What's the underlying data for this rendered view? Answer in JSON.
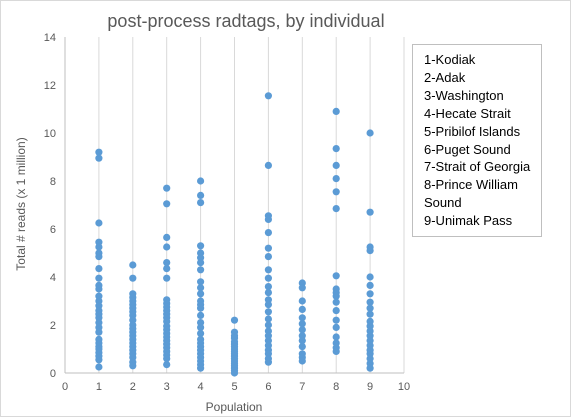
{
  "chart_data": {
    "type": "scatter",
    "title": "post-process radtags, by individual",
    "xlabel": "Population",
    "ylabel": "Total # reads (x 1 million)",
    "xlim": [
      0,
      10
    ],
    "ylim": [
      0,
      14
    ],
    "x_ticks": [
      "0",
      "1",
      "2",
      "3",
      "4",
      "5",
      "6",
      "7",
      "8",
      "9",
      "10"
    ],
    "y_ticks": [
      "0",
      "2",
      "4",
      "6",
      "8",
      "10",
      "12",
      "14"
    ],
    "grid": "vertical",
    "legend_position": "right",
    "marker_color": "#5b9bd5",
    "legend": [
      "1-Kodiak",
      "2-Adak",
      "3-Washington",
      "4-Hecate Strait",
      "5-Pribilof Islands",
      "6-Puget Sound",
      "7-Strait of Georgia",
      "8-Prince William Sound",
      "9-Unimak Pass"
    ],
    "points": [
      {
        "x": 1,
        "ys": [
          9.2,
          8.95,
          6.25,
          5.45,
          5.25,
          5.0,
          4.85,
          4.35,
          3.95,
          3.65,
          3.5,
          3.2,
          3.0,
          2.8,
          2.6,
          2.45,
          2.3,
          2.1,
          1.9,
          1.7,
          1.4,
          1.25,
          1.1,
          1.0,
          0.85,
          0.7,
          0.55,
          0.25
        ]
      },
      {
        "x": 2,
        "ys": [
          4.5,
          3.95,
          3.3,
          3.15,
          3.0,
          2.85,
          2.7,
          2.55,
          2.4,
          2.2,
          2.0,
          1.85,
          1.7,
          1.55,
          1.4,
          1.25,
          1.1,
          0.95,
          0.8,
          0.65,
          0.45,
          0.3
        ]
      },
      {
        "x": 3,
        "ys": [
          7.7,
          7.05,
          5.65,
          5.25,
          4.6,
          4.35,
          3.95,
          3.05,
          2.9,
          2.75,
          2.6,
          2.45,
          2.3,
          2.15,
          1.95,
          1.8,
          1.65,
          1.5,
          1.35,
          1.2,
          1.05,
          0.9,
          0.75,
          0.6,
          0.35
        ]
      },
      {
        "x": 4,
        "ys": [
          8.0,
          7.4,
          7.1,
          5.3,
          5.0,
          4.8,
          4.6,
          4.3,
          3.8,
          3.55,
          3.3,
          3.0,
          2.85,
          2.7,
          2.4,
          2.1,
          1.9,
          1.65,
          1.4,
          1.25,
          1.1,
          0.95,
          0.8,
          0.65,
          0.5,
          0.35,
          0.2
        ]
      },
      {
        "x": 5,
        "ys": [
          2.2,
          1.7,
          1.55,
          1.45,
          1.3,
          1.2,
          1.1,
          1.0,
          0.9,
          0.8,
          0.7,
          0.6,
          0.5,
          0.4,
          0.3,
          0.2,
          0.1,
          0.0
        ]
      },
      {
        "x": 6,
        "ys": [
          11.55,
          8.65,
          6.55,
          6.4,
          5.85,
          5.2,
          4.85,
          4.3,
          3.95,
          3.6,
          3.35,
          3.05,
          2.85,
          2.55,
          2.25,
          2.0,
          1.75,
          1.55,
          1.35,
          1.15,
          0.95,
          0.8,
          0.6,
          0.45
        ]
      },
      {
        "x": 7,
        "ys": [
          3.75,
          3.55,
          3.0,
          2.65,
          2.3,
          2.05,
          1.8,
          1.55,
          1.35,
          1.1,
          0.8,
          0.65,
          0.5
        ]
      },
      {
        "x": 8,
        "ys": [
          10.9,
          9.35,
          8.65,
          8.1,
          7.55,
          6.85,
          4.05,
          3.5,
          3.35,
          3.2,
          2.95,
          2.6,
          2.2,
          1.9,
          1.5,
          1.25,
          1.05,
          0.9
        ]
      },
      {
        "x": 9,
        "ys": [
          10.0,
          6.7,
          5.25,
          5.1,
          4.0,
          3.65,
          3.3,
          2.95,
          2.7,
          2.45,
          2.15,
          1.95,
          1.75,
          1.55,
          1.35,
          1.15,
          0.95,
          0.8,
          0.6,
          0.4,
          0.2
        ]
      }
    ]
  }
}
